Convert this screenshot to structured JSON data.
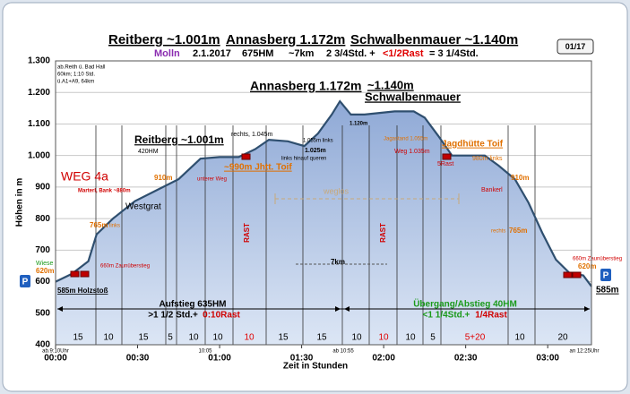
{
  "chart_data": {
    "type": "area",
    "title_parts": [
      "Reitberg ~1.001m",
      "Annasberg 1.172m",
      "Schwalbenmauer ~1.140m"
    ],
    "subtitle_parts": [
      "Molln",
      "2.1.2017",
      "675HM",
      "~7km",
      "2 3/4Std. +",
      "<1/2Rast",
      "= 3 1/4Std."
    ],
    "badge": "01/17",
    "xlabel": "Zeit in Stunden",
    "ylabel": "Höhen in m",
    "xlim": [
      0,
      196
    ],
    "ylim": [
      400,
      1300
    ],
    "xticks": [
      {
        "value": 0,
        "label": "00:00"
      },
      {
        "value": 30,
        "label": "00:30"
      },
      {
        "value": 60,
        "label": "01:00"
      },
      {
        "value": 90,
        "label": "01:30"
      },
      {
        "value": 120,
        "label": "02:00"
      },
      {
        "value": 150,
        "label": "02:30"
      },
      {
        "value": 180,
        "label": "03:00"
      }
    ],
    "yticks": [
      400,
      500,
      600,
      700,
      800,
      900,
      {
        "value": 1000,
        "label": "1.000"
      },
      {
        "value": 1100,
        "label": "1.100"
      },
      {
        "value": 1200,
        "label": "1.200"
      },
      {
        "value": 1300,
        "label": "1.300"
      }
    ],
    "grid": true,
    "color": "#2f4f6f",
    "x": [
      0,
      6,
      12,
      15,
      21,
      29,
      37,
      45,
      53,
      60,
      67,
      73,
      78,
      85,
      91,
      96,
      101,
      104,
      108,
      113,
      124,
      131,
      135,
      140,
      145,
      157,
      162,
      168,
      173,
      178,
      183,
      188,
      193,
      196
    ],
    "values": [
      600,
      625,
      665,
      750,
      800,
      855,
      890,
      925,
      990,
      995,
      995,
      1020,
      1050,
      1045,
      1030,
      1070,
      1130,
      1172,
      1130,
      1130,
      1140,
      1140,
      1120,
      1062,
      1000,
      1000,
      968,
      925,
      850,
      755,
      670,
      627,
      620,
      585
    ],
    "segment_labels": [
      "15",
      "10",
      "15",
      "5",
      "10",
      "10",
      "10",
      "15",
      "15",
      "10",
      "10",
      "10",
      "5",
      "5+20",
      "10",
      "20"
    ],
    "annotations": [
      "ab.Reith ü. Bad Hall",
      "60km; 1:10 Std.",
      "ü.A1+A9,  64km",
      "WEG 4a",
      "Westgrat",
      "Reitberg ~1.001m",
      "420HM",
      "rechts, 1.045m",
      "Annasberg 1.172m",
      "1.025m",
      "links hinauf queren",
      "1.055m links",
      "1.120m",
      "~1.140m",
      "Schwalbenmauer",
      "Jagastand 1.055m",
      "Weg 1.035m",
      "Jagdhütte Toif",
      "5Rast",
      "980m links",
      "Bankerl",
      "910m",
      "rechts",
      "765m",
      "660m Zaunüberstieg",
      "620m",
      "P",
      "585m",
      "P",
      "Wiese",
      "620m",
      "660m Zaunüberstieg",
      "585m Holzstoß",
      "765m",
      "links",
      "Marterl, Bank ~880m",
      "910m",
      "unterer Weg",
      "~990m Jhtt. Toif",
      "RAST",
      "RAST",
      "weglos",
      "7km",
      "Aufstieg 635HM",
      ">1 1/2 Std.+",
      "0:10Rast",
      "Übergang/Abstieg 40HM",
      "<1 1/4Std.+",
      "1/4Rast",
      "ab.9:10Uhr",
      "10:05",
      "ab 10:55",
      "an 12:25Uhr"
    ]
  }
}
